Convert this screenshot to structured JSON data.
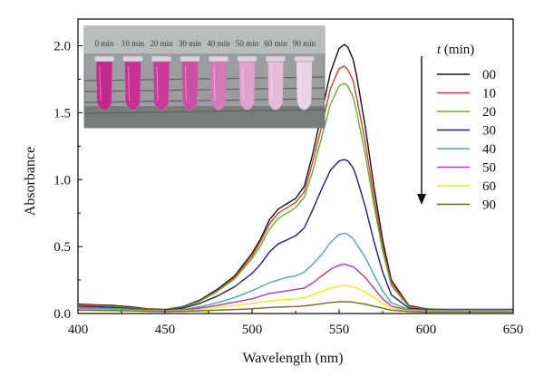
{
  "chart_data": {
    "type": "line",
    "xlabel": "Wavelength (nm)",
    "ylabel": "Absorbance",
    "xlim": [
      400,
      650
    ],
    "ylim": [
      0,
      2.2
    ],
    "xticks": [
      400,
      450,
      500,
      550,
      600,
      650
    ],
    "yticks": [
      0.0,
      0.5,
      1.0,
      1.5,
      2.0
    ],
    "legend": {
      "title_var": "t",
      "title_unit": " (min)",
      "placement": "top-right",
      "arrow_direction": "down"
    },
    "x": [
      400,
      410,
      420,
      430,
      440,
      450,
      460,
      470,
      480,
      490,
      500,
      505,
      510,
      515,
      520,
      525,
      530,
      535,
      540,
      545,
      550,
      553,
      555,
      558,
      560,
      565,
      570,
      575,
      580,
      590,
      600,
      610,
      620,
      630,
      640,
      650
    ],
    "series": [
      {
        "name": "00",
        "color": "#111111",
        "values": [
          0.07,
          0.065,
          0.06,
          0.05,
          0.035,
          0.03,
          0.05,
          0.1,
          0.18,
          0.28,
          0.45,
          0.56,
          0.7,
          0.78,
          0.82,
          0.86,
          0.95,
          1.2,
          1.5,
          1.8,
          1.98,
          2.01,
          1.99,
          1.9,
          1.78,
          1.4,
          0.95,
          0.55,
          0.25,
          0.06,
          0.035,
          0.03,
          0.03,
          0.03,
          0.03,
          0.03
        ]
      },
      {
        "name": "10",
        "color": "#d9402a",
        "values": [
          0.065,
          0.06,
          0.055,
          0.045,
          0.032,
          0.028,
          0.047,
          0.095,
          0.17,
          0.27,
          0.43,
          0.54,
          0.67,
          0.75,
          0.79,
          0.83,
          0.91,
          1.14,
          1.4,
          1.68,
          1.83,
          1.85,
          1.82,
          1.74,
          1.62,
          1.28,
          0.87,
          0.5,
          0.23,
          0.055,
          0.033,
          0.03,
          0.03,
          0.03,
          0.03,
          0.03
        ]
      },
      {
        "name": "20",
        "color": "#6aab2e",
        "values": [
          0.06,
          0.055,
          0.05,
          0.042,
          0.03,
          0.027,
          0.045,
          0.09,
          0.165,
          0.26,
          0.41,
          0.51,
          0.63,
          0.71,
          0.75,
          0.79,
          0.87,
          1.07,
          1.32,
          1.56,
          1.7,
          1.72,
          1.7,
          1.62,
          1.51,
          1.19,
          0.81,
          0.47,
          0.21,
          0.05,
          0.032,
          0.03,
          0.03,
          0.03,
          0.03,
          0.03
        ]
      },
      {
        "name": "30",
        "color": "#1f1d80",
        "values": [
          0.055,
          0.05,
          0.045,
          0.038,
          0.028,
          0.025,
          0.04,
          0.075,
          0.13,
          0.2,
          0.3,
          0.37,
          0.46,
          0.52,
          0.55,
          0.58,
          0.64,
          0.78,
          0.93,
          1.07,
          1.14,
          1.15,
          1.14,
          1.09,
          1.02,
          0.8,
          0.54,
          0.31,
          0.14,
          0.04,
          0.03,
          0.03,
          0.03,
          0.03,
          0.03,
          0.03
        ]
      },
      {
        "name": "40",
        "color": "#4fa7a6",
        "values": [
          0.045,
          0.04,
          0.038,
          0.032,
          0.025,
          0.022,
          0.03,
          0.05,
          0.08,
          0.12,
          0.17,
          0.2,
          0.23,
          0.25,
          0.27,
          0.28,
          0.31,
          0.37,
          0.44,
          0.53,
          0.59,
          0.6,
          0.59,
          0.56,
          0.52,
          0.42,
          0.29,
          0.17,
          0.08,
          0.03,
          0.025,
          0.025,
          0.025,
          0.025,
          0.025,
          0.025
        ]
      },
      {
        "name": "50",
        "color": "#b03aa8",
        "values": [
          0.035,
          0.032,
          0.03,
          0.027,
          0.022,
          0.02,
          0.025,
          0.04,
          0.06,
          0.085,
          0.11,
          0.13,
          0.15,
          0.16,
          0.17,
          0.18,
          0.19,
          0.23,
          0.28,
          0.33,
          0.36,
          0.37,
          0.36,
          0.35,
          0.33,
          0.27,
          0.19,
          0.11,
          0.055,
          0.025,
          0.02,
          0.02,
          0.02,
          0.02,
          0.02,
          0.02
        ]
      },
      {
        "name": "60",
        "color": "#eeea1a",
        "values": [
          0.03,
          0.028,
          0.026,
          0.024,
          0.02,
          0.018,
          0.02,
          0.03,
          0.045,
          0.06,
          0.075,
          0.085,
          0.095,
          0.1,
          0.105,
          0.11,
          0.12,
          0.14,
          0.165,
          0.19,
          0.205,
          0.21,
          0.205,
          0.2,
          0.19,
          0.16,
          0.12,
          0.075,
          0.04,
          0.02,
          0.018,
          0.018,
          0.018,
          0.018,
          0.018,
          0.018
        ]
      },
      {
        "name": "90",
        "color": "#6e6a1a",
        "values": [
          0.025,
          0.023,
          0.022,
          0.02,
          0.017,
          0.015,
          0.016,
          0.02,
          0.025,
          0.03,
          0.035,
          0.04,
          0.045,
          0.048,
          0.05,
          0.052,
          0.056,
          0.064,
          0.073,
          0.082,
          0.087,
          0.088,
          0.087,
          0.085,
          0.08,
          0.07,
          0.055,
          0.04,
          0.025,
          0.015,
          0.012,
          0.012,
          0.012,
          0.012,
          0.012,
          0.012
        ]
      }
    ]
  },
  "inset": {
    "tube_labels": [
      "0 min",
      "10 min",
      "20 min",
      "30 min",
      "40 min",
      "50 min",
      "60 min",
      "90 min"
    ],
    "tube_colors": [
      "#c8238f",
      "#cb2b93",
      "#ce3599",
      "#d04aa4",
      "#d979bb",
      "#e3a3cf",
      "#e9bedc",
      "#efd6e6"
    ]
  }
}
